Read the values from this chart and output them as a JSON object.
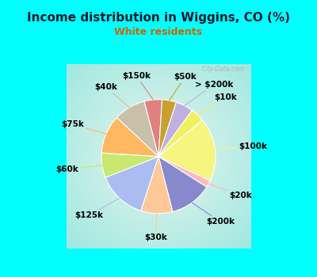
{
  "title": "Income distribution in Wiggins, CO (%)",
  "subtitle": "White residents",
  "title_color": "#1a1a2e",
  "subtitle_color": "#cc6600",
  "border_color": "#00ffff",
  "bg_gradient_outer": "#00e8e8",
  "bg_gradient_inner": "#e8f5ee",
  "labels": [
    "> $200k",
    "$10k",
    "$100k",
    "$20k",
    "$200k",
    "$30k",
    "$125k",
    "$60k",
    "$75k",
    "$40k",
    "$150k",
    "$50k"
  ],
  "values": [
    5,
    4,
    18,
    2,
    12,
    9,
    14,
    7,
    11,
    9,
    5,
    4
  ],
  "colors": [
    "#c0b0e0",
    "#f0f060",
    "#f5f580",
    "#ffb8c0",
    "#8888cc",
    "#ffc898",
    "#aabcf0",
    "#c8e870",
    "#ffb860",
    "#c8c0a8",
    "#e08080",
    "#c8a030"
  ],
  "label_fontsize": 7.5,
  "wedge_edge_color": "#ffffff",
  "wedge_linewidth": 0.8,
  "startangle": 72,
  "figsize": [
    4.0,
    3.5
  ],
  "dpi": 100
}
